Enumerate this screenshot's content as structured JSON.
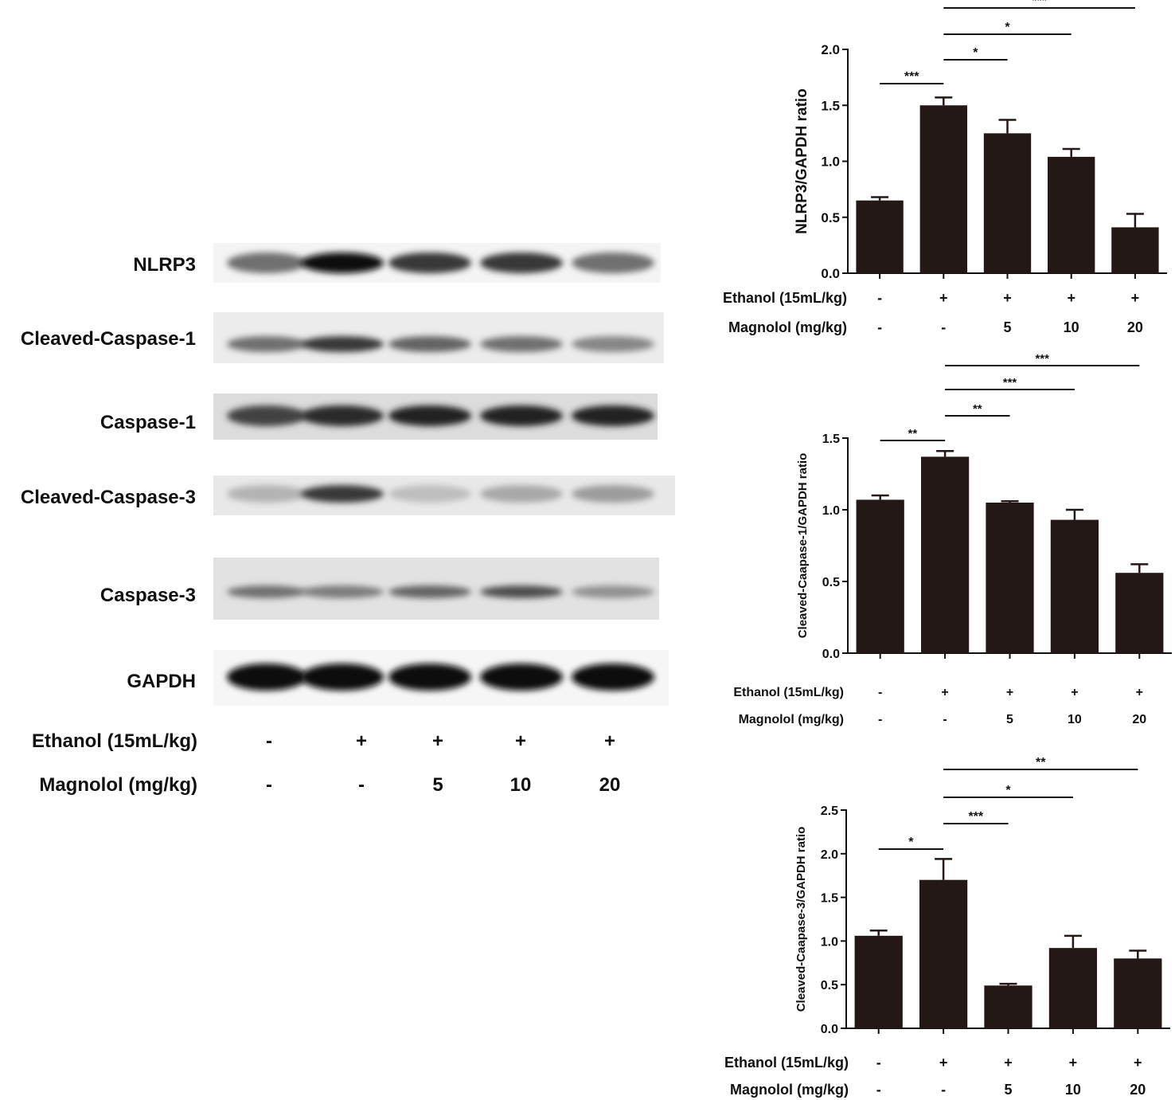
{
  "western_blot": {
    "rows": [
      {
        "label": "NLRP3",
        "intensity": [
          0.55,
          1.0,
          0.8,
          0.8,
          0.55
        ]
      },
      {
        "label": "Cleaved-Caspase-1",
        "intensity": [
          0.55,
          0.8,
          0.6,
          0.55,
          0.45
        ]
      },
      {
        "label": "Caspase-1",
        "intensity": [
          0.75,
          0.85,
          0.9,
          0.9,
          0.9
        ]
      },
      {
        "label": "Cleaved-Caspase-3",
        "intensity": [
          0.25,
          0.8,
          0.2,
          0.3,
          0.35
        ]
      },
      {
        "label": "Caspase-3",
        "intensity": [
          0.55,
          0.5,
          0.6,
          0.7,
          0.4
        ]
      },
      {
        "label": "GAPDH",
        "intensity": [
          1.0,
          1.0,
          1.0,
          1.0,
          1.0
        ]
      }
    ],
    "conditions": [
      {
        "label": "Ethanol (15mL/kg)",
        "values": [
          "-",
          "+",
          "+",
          "+",
          "+"
        ]
      },
      {
        "label": "Magnolol (mg/kg)",
        "values": [
          "-",
          "-",
          "5",
          "10",
          "20"
        ]
      }
    ]
  },
  "chart_data": [
    {
      "type": "bar",
      "ylabel": "NLRP3/GAPDH ratio",
      "ylim": [
        0,
        2.0
      ],
      "yticks": [
        "0.0",
        "0.5",
        "1.0",
        "1.5",
        "2.0"
      ],
      "tick_values": [
        0,
        0.5,
        1.0,
        1.5,
        2.0
      ],
      "values": [
        0.65,
        1.5,
        1.25,
        1.04,
        0.41
      ],
      "errors": [
        0.03,
        0.07,
        0.12,
        0.07,
        0.12
      ],
      "significance": [
        {
          "from": 0,
          "to": 1,
          "label": "***"
        },
        {
          "from": 1,
          "to": 2,
          "label": "*"
        },
        {
          "from": 1,
          "to": 3,
          "label": "*"
        },
        {
          "from": 1,
          "to": 4,
          "label": "***"
        }
      ],
      "conditions": [
        {
          "label": "Ethanol (15mL/kg)",
          "values": [
            "-",
            "+",
            "+",
            "+",
            "+"
          ]
        },
        {
          "label": "Magnolol (mg/kg)",
          "values": [
            "-",
            "-",
            "5",
            "10",
            "20"
          ]
        }
      ],
      "bar_color": "#231815"
    },
    {
      "type": "bar",
      "ylabel": "Cleaved-Caapase-1/GAPDH ratio",
      "ylim": [
        0,
        1.5
      ],
      "yticks": [
        "0.0",
        "0.5",
        "1.0",
        "1.5"
      ],
      "tick_values": [
        0,
        0.5,
        1.0,
        1.5
      ],
      "values": [
        1.07,
        1.37,
        1.05,
        0.93,
        0.56
      ],
      "errors": [
        0.03,
        0.04,
        0.01,
        0.07,
        0.06
      ],
      "significance": [
        {
          "from": 0,
          "to": 1,
          "label": "**"
        },
        {
          "from": 1,
          "to": 2,
          "label": "**"
        },
        {
          "from": 1,
          "to": 3,
          "label": "***"
        },
        {
          "from": 1,
          "to": 4,
          "label": "***"
        }
      ],
      "conditions": [
        {
          "label": "Ethanol (15mL/kg)",
          "values": [
            "-",
            "+",
            "+",
            "+",
            "+"
          ]
        },
        {
          "label": "Magnolol (mg/kg)",
          "values": [
            "-",
            "-",
            "5",
            "10",
            "20"
          ]
        }
      ],
      "bar_color": "#231815"
    },
    {
      "type": "bar",
      "ylabel": "Cleaved-Caapase-3/GAPDH ratio",
      "ylim": [
        0,
        2.5
      ],
      "yticks": [
        "0.0",
        "0.5",
        "1.0",
        "1.5",
        "2.0",
        "2.5"
      ],
      "tick_values": [
        0,
        0.5,
        1.0,
        1.5,
        2.0,
        2.5
      ],
      "values": [
        1.06,
        1.7,
        0.49,
        0.92,
        0.8
      ],
      "errors": [
        0.06,
        0.24,
        0.02,
        0.14,
        0.09
      ],
      "significance": [
        {
          "from": 0,
          "to": 1,
          "label": "*"
        },
        {
          "from": 1,
          "to": 2,
          "label": "***"
        },
        {
          "from": 1,
          "to": 3,
          "label": "*"
        },
        {
          "from": 1,
          "to": 4,
          "label": "**"
        }
      ],
      "conditions": [
        {
          "label": "Ethanol (15mL/kg)",
          "values": [
            "-",
            "+",
            "+",
            "+",
            "+"
          ]
        },
        {
          "label": "Magnolol (mg/kg)",
          "values": [
            "-",
            "-",
            "5",
            "10",
            "20"
          ]
        }
      ],
      "bar_color": "#231815"
    }
  ]
}
